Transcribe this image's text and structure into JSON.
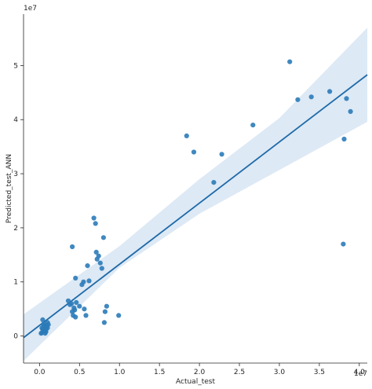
{
  "chart_data": {
    "type": "scatter",
    "title": "",
    "xlabel": "Actual_test",
    "ylabel": "Predicted_test_ANN",
    "x_exponent_label": "1e7",
    "y_exponent_label": "1e7",
    "xlim": [
      -0.2,
      4.1
    ],
    "ylim": [
      -0.5,
      5.95
    ],
    "xticks": [
      0.0,
      0.5,
      1.0,
      1.5,
      2.0,
      2.5,
      3.0,
      3.5,
      4.0
    ],
    "xtick_labels": [
      "0.0",
      "0.5",
      "1.0",
      "1.5",
      "2.0",
      "2.5",
      "3.0",
      "3.5",
      "4.0"
    ],
    "yticks": [
      0,
      1,
      2,
      3,
      4,
      5
    ],
    "ytick_labels": [
      "0",
      "1",
      "2",
      "3",
      "4",
      "5"
    ],
    "grid": false,
    "point_color": "#2b7bb9",
    "line_color": "#1f6aa8",
    "band_color": "#c6dbef",
    "regression_line": {
      "x": [
        -0.2,
        4.1
      ],
      "y": [
        -0.03,
        4.83
      ]
    },
    "confidence_band": {
      "x": [
        -0.2,
        1.0,
        2.0,
        3.0,
        4.1
      ],
      "lower": [
        -0.46,
        1.26,
        2.26,
        3.07,
        3.96
      ],
      "upper": [
        0.4,
        1.66,
        2.9,
        4.03,
        5.7
      ]
    },
    "series": [
      {
        "x": [
          0.02,
          0.05,
          0.03,
          0.07,
          0.04,
          0.06,
          0.08,
          0.09,
          0.05,
          0.1,
          0.07,
          0.08,
          0.06,
          0.09,
          0.1,
          0.03,
          0.04,
          0.05,
          0.07,
          0.08,
          0.11,
          0.06,
          0.36,
          0.38,
          0.4,
          0.42,
          0.41,
          0.43,
          0.44,
          0.45,
          0.46,
          0.5,
          0.53,
          0.55,
          0.58,
          0.62,
          0.68,
          0.7,
          0.72,
          0.74,
          0.76,
          0.78,
          0.8,
          0.82,
          0.84,
          0.41,
          0.45,
          0.6,
          0.71,
          0.81,
          0.56,
          0.99,
          1.84,
          1.93,
          2.18,
          2.28,
          2.67,
          3.13,
          3.23,
          3.4,
          3.63,
          3.8,
          3.84,
          3.89,
          3.81
        ],
        "y": [
          0.05,
          0.1,
          0.15,
          0.2,
          0.3,
          0.12,
          0.08,
          0.18,
          0.22,
          0.25,
          0.05,
          0.14,
          0.1,
          0.2,
          0.15,
          0.06,
          0.12,
          0.18,
          0.09,
          0.11,
          0.21,
          0.16,
          0.65,
          0.58,
          0.6,
          0.38,
          0.45,
          0.52,
          0.48,
          0.35,
          0.62,
          0.55,
          0.95,
          1.0,
          0.38,
          1.02,
          2.18,
          2.08,
          1.42,
          1.48,
          1.35,
          1.25,
          1.82,
          0.45,
          0.55,
          1.65,
          1.07,
          1.3,
          1.55,
          0.25,
          0.5,
          0.38,
          3.7,
          3.4,
          2.84,
          3.36,
          3.9,
          5.07,
          4.37,
          4.42,
          4.52,
          1.7,
          4.39,
          4.15,
          3.64
        ]
      }
    ]
  }
}
